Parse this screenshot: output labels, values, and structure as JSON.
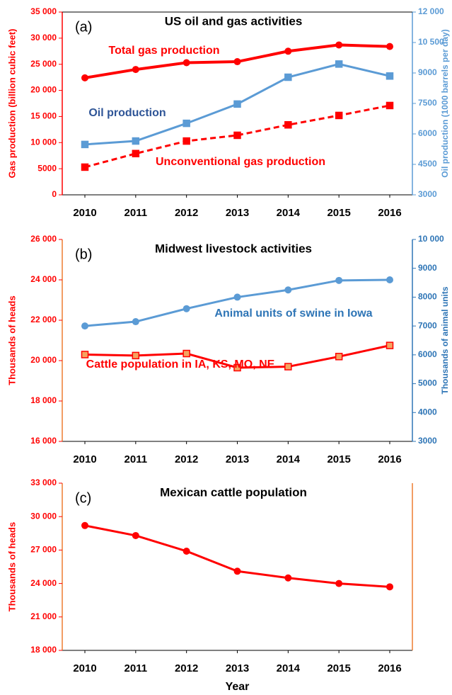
{
  "chart_data": [
    {
      "type": "line",
      "panel_label": "(a)",
      "title": "US oil and gas activities",
      "y_label": "Gas production (billion cubic feet)",
      "y2_label": "Oil production (1000 barrels per day)",
      "y_axis_color": "#ff0000",
      "y2_axis_color": "#5b9bd5",
      "categories": [
        2010,
        2011,
        2012,
        2013,
        2014,
        2015,
        2016
      ],
      "ylim": [
        0,
        35000
      ],
      "yticks": [
        0,
        5000,
        {
          "value": 10000,
          "label": "10 000"
        },
        {
          "value": 15000,
          "label": "15 000"
        },
        {
          "value": 20000,
          "label": "20 000"
        },
        {
          "value": 25000,
          "label": "25 000"
        },
        {
          "value": 30000,
          "label": "30 000"
        },
        {
          "value": 35000,
          "label": "35 000"
        }
      ],
      "y2lim": [
        3000,
        12000
      ],
      "y2ticks": [
        3000,
        4500,
        6000,
        7500,
        9000,
        {
          "value": 10500,
          "label": "10 500"
        },
        {
          "value": 12000,
          "label": "12 000"
        }
      ],
      "series": [
        {
          "name": "Total gas production",
          "color": "#ff0000",
          "marker": "circle",
          "dashed": false,
          "values": [
            22400,
            24000,
            25300,
            25500,
            27500,
            28700,
            28400
          ]
        },
        {
          "name": "Unconventional gas production",
          "color": "#ff0000",
          "marker": "square",
          "dashed": true,
          "values": [
            5300,
            7900,
            10300,
            11400,
            13400,
            15200,
            17100
          ]
        },
        {
          "name": "Oil production",
          "color": "#5b9bd5",
          "marker": "square",
          "dashed": false,
          "axis": "y2",
          "values": [
            5480,
            5650,
            6520,
            7470,
            8790,
            9440,
            8850
          ]
        }
      ]
    },
    {
      "type": "line",
      "panel_label": "(b)",
      "title": "Midwest livestock activities",
      "y_label": "Thousands of heads",
      "y2_label": "Thousands of animal units",
      "y_axis_color": "#ff0000",
      "y2_axis_color": "#2e75b6",
      "categories": [
        2010,
        2011,
        2012,
        2013,
        2014,
        2015,
        2016
      ],
      "ylim": [
        16000,
        26000
      ],
      "yticks": [
        {
          "value": 16000,
          "label": "16 000"
        },
        {
          "value": 18000,
          "label": "18 000"
        },
        {
          "value": 20000,
          "label": "20 000"
        },
        {
          "value": 22000,
          "label": "22 000"
        },
        {
          "value": 24000,
          "label": "24 000"
        },
        {
          "value": 26000,
          "label": "26 000"
        }
      ],
      "y2lim": [
        3000,
        10000
      ],
      "y2ticks": [
        3000,
        4000,
        5000,
        6000,
        7000,
        8000,
        9000,
        {
          "value": 10000,
          "label": "10 000"
        }
      ],
      "series": [
        {
          "name": "Cattle population in IA, KS, MO, NE",
          "color": "#ff0000",
          "marker": "square",
          "dashed": false,
          "values": [
            20300,
            20250,
            20350,
            19650,
            19700,
            20200,
            20750
          ]
        },
        {
          "name": "Animal units of swine in Iowa",
          "color": "#5b9bd5",
          "marker": "circle",
          "dashed": false,
          "axis": "y2",
          "values": [
            7000,
            7150,
            7600,
            8000,
            8250,
            8580,
            8600
          ]
        }
      ]
    },
    {
      "type": "line",
      "panel_label": "(c)",
      "title": "Mexican cattle population",
      "y_label": "Thousands of heads",
      "x_label": "Year",
      "y_axis_color": "#ff0000",
      "categories": [
        2010,
        2011,
        2012,
        2013,
        2014,
        2015,
        2016
      ],
      "ylim": [
        18000,
        33000
      ],
      "yticks": [
        {
          "value": 18000,
          "label": "18 000"
        },
        {
          "value": 21000,
          "label": "21 000"
        },
        {
          "value": 24000,
          "label": "24 000"
        },
        {
          "value": 27000,
          "label": "27 000"
        },
        {
          "value": 30000,
          "label": "30 000"
        },
        {
          "value": 33000,
          "label": "33 000"
        }
      ],
      "series": [
        {
          "color": "#ff0000",
          "marker": "circle",
          "dashed": false,
          "values": [
            29200,
            28300,
            26900,
            25100,
            24500,
            24000,
            23700
          ]
        }
      ]
    }
  ]
}
